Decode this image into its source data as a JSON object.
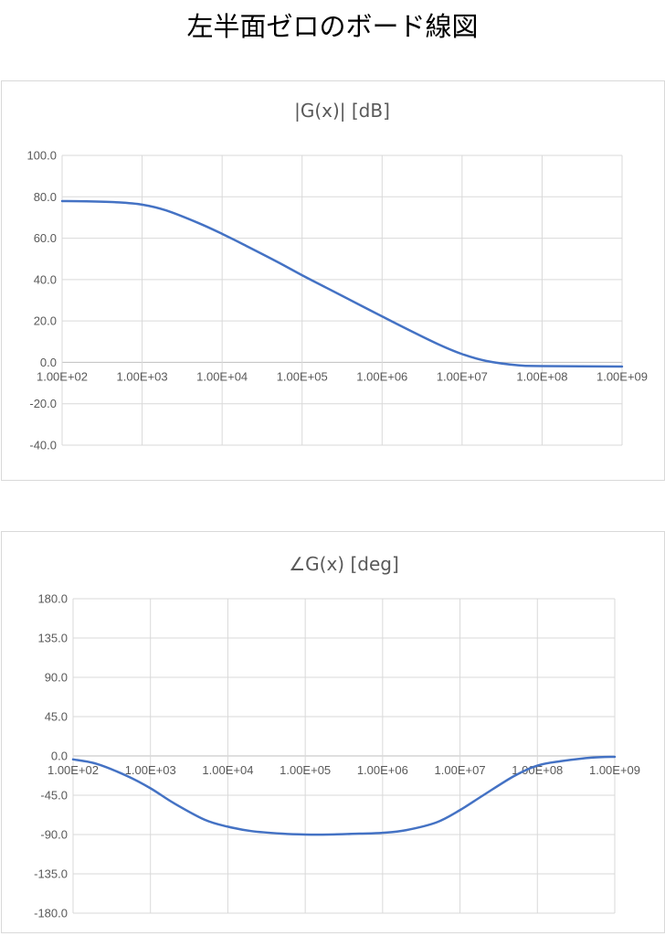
{
  "page": {
    "title": "左半面ゼロのボード線図"
  },
  "chart_data": [
    {
      "type": "line",
      "title": "|G(x)| [dB]",
      "x_scale": "log",
      "x_ticks": [
        "1.00E+02",
        "1.00E+03",
        "1.00E+04",
        "1.00E+05",
        "1.00E+06",
        "1.00E+07",
        "1.00E+08",
        "1.00E+09"
      ],
      "xlim": [
        100,
        1000000000
      ],
      "ylim": [
        -40,
        100
      ],
      "y_ticks": [
        "100.0",
        "80.0",
        "60.0",
        "40.0",
        "20.0",
        "0.0",
        "-20.0",
        "-40.0"
      ],
      "grid": true,
      "legend": "none",
      "color": "#4472c4",
      "series": [
        {
          "x": [
            100,
            200,
            500,
            1000,
            2000,
            5000,
            10000,
            20000,
            50000,
            100000,
            200000,
            500000,
            1000000,
            2000000,
            5000000,
            10000000,
            20000000,
            50000000,
            100000000,
            1000000000
          ],
          "y": [
            77.9,
            77.8,
            77.3,
            76.2,
            73.4,
            67.4,
            62.1,
            56.3,
            48.4,
            42.1,
            36.1,
            28.2,
            22.2,
            16.3,
            8.8,
            4.0,
            0.7,
            -1.4,
            -1.8,
            -2.0
          ]
        }
      ]
    },
    {
      "type": "line",
      "title": "∠G(x) [deg]",
      "x_scale": "log",
      "x_ticks": [
        "1.00E+02",
        "1.00E+03",
        "1.00E+04",
        "1.00E+05",
        "1.00E+06",
        "1.00E+07",
        "1.00E+08",
        "1.00E+09"
      ],
      "xlim": [
        100,
        1000000000
      ],
      "ylim": [
        -180,
        180
      ],
      "y_ticks": [
        "180.0",
        "135.0",
        "90.0",
        "45.0",
        "0.0",
        "-45.0",
        "-90.0",
        "-135.0",
        "-180.0"
      ],
      "grid": true,
      "legend": "none",
      "color": "#4472c4",
      "series": [
        {
          "x": [
            100,
            200,
            500,
            1000,
            2000,
            5000,
            10000,
            20000,
            50000,
            100000,
            200000,
            500000,
            1000000,
            2000000,
            5000000,
            10000000,
            20000000,
            50000000,
            100000000,
            200000000,
            500000000,
            1000000000
          ],
          "y": [
            -4,
            -9,
            -23,
            -37,
            -54,
            -73,
            -81,
            -86,
            -89,
            -90,
            -90,
            -89,
            -88,
            -85,
            -76,
            -62,
            -45,
            -23,
            -11,
            -6,
            -2,
            -1
          ]
        }
      ]
    }
  ]
}
